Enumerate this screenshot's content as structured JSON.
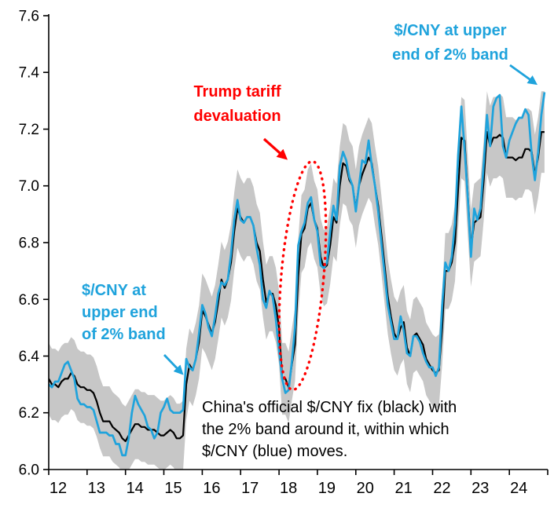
{
  "chart_data": {
    "type": "line",
    "title": "",
    "xlabel": "",
    "ylabel": "",
    "xlim": [
      12,
      25
    ],
    "ylim": [
      6.0,
      7.6
    ],
    "x_start_year": 12,
    "x_tick_labels": [
      "12",
      "13",
      "14",
      "15",
      "16",
      "17",
      "18",
      "19",
      "20",
      "21",
      "22",
      "23",
      "24"
    ],
    "y_ticks": [
      6.0,
      6.2,
      6.4,
      6.6,
      6.8,
      7.0,
      7.2,
      7.4,
      7.6
    ],
    "grid": false,
    "legend": "none",
    "band_pct": 2,
    "band_color": "#C7C7C7",
    "points_per_year": 12,
    "series": [
      {
        "name": "China's official $/CNY fix",
        "color": "#000000",
        "values": [
          6.32,
          6.3,
          6.3,
          6.29,
          6.31,
          6.32,
          6.32,
          6.34,
          6.33,
          6.3,
          6.29,
          6.29,
          6.28,
          6.28,
          6.27,
          6.24,
          6.2,
          6.17,
          6.17,
          6.17,
          6.15,
          6.14,
          6.13,
          6.11,
          6.1,
          6.12,
          6.14,
          6.16,
          6.16,
          6.15,
          6.15,
          6.14,
          6.14,
          6.14,
          6.13,
          6.12,
          6.12,
          6.13,
          6.14,
          6.13,
          6.11,
          6.11,
          6.12,
          6.3,
          6.37,
          6.35,
          6.39,
          6.45,
          6.56,
          6.54,
          6.51,
          6.48,
          6.52,
          6.59,
          6.67,
          6.64,
          6.67,
          6.73,
          6.84,
          6.92,
          6.89,
          6.87,
          6.89,
          6.89,
          6.86,
          6.8,
          6.77,
          6.67,
          6.59,
          6.62,
          6.62,
          6.58,
          6.5,
          6.32,
          6.32,
          6.29,
          6.37,
          6.44,
          6.68,
          6.83,
          6.85,
          6.92,
          6.94,
          6.88,
          6.85,
          6.75,
          6.71,
          6.72,
          6.79,
          6.89,
          6.87,
          7.0,
          7.08,
          7.07,
          7.02,
          7.0,
          6.92,
          7.0,
          7.04,
          7.07,
          7.1,
          7.08,
          7.0,
          6.93,
          6.83,
          6.72,
          6.61,
          6.54,
          6.48,
          6.46,
          6.5,
          6.52,
          6.43,
          6.4,
          6.47,
          6.48,
          6.46,
          6.44,
          6.39,
          6.37,
          6.35,
          6.34,
          6.35,
          6.5,
          6.7,
          6.7,
          6.73,
          6.8,
          6.99,
          7.17,
          7.16,
          6.97,
          6.78,
          6.87,
          6.88,
          6.89,
          7.02,
          7.19,
          7.14,
          7.17,
          7.17,
          7.18,
          7.17,
          7.1,
          7.1,
          7.1,
          7.09,
          7.1,
          7.1,
          7.13,
          7.13,
          7.12,
          7.04,
          7.1,
          7.19,
          7.19
        ]
      },
      {
        "name": "$/CNY spot",
        "color": "#1FA3DC",
        "values": [
          6.3,
          6.29,
          6.31,
          6.31,
          6.34,
          6.37,
          6.38,
          6.35,
          6.32,
          6.25,
          6.23,
          6.23,
          6.22,
          6.22,
          6.21,
          6.17,
          6.13,
          6.13,
          6.13,
          6.12,
          6.12,
          6.09,
          6.09,
          6.05,
          6.05,
          6.11,
          6.2,
          6.26,
          6.23,
          6.21,
          6.19,
          6.15,
          6.14,
          6.11,
          6.13,
          6.2,
          6.22,
          6.25,
          6.21,
          6.2,
          6.2,
          6.2,
          6.21,
          6.39,
          6.36,
          6.35,
          6.39,
          6.48,
          6.58,
          6.55,
          6.5,
          6.47,
          6.54,
          6.62,
          6.66,
          6.65,
          6.67,
          6.76,
          6.88,
          6.95,
          6.88,
          6.87,
          6.89,
          6.89,
          6.86,
          6.78,
          6.72,
          6.6,
          6.57,
          6.63,
          6.61,
          6.53,
          6.42,
          6.32,
          6.27,
          6.28,
          6.38,
          6.5,
          6.79,
          6.84,
          6.87,
          6.94,
          6.96,
          6.88,
          6.84,
          6.72,
          6.71,
          6.73,
          6.84,
          6.93,
          6.88,
          7.07,
          7.12,
          7.09,
          7.03,
          7.0,
          6.91,
          7.0,
          7.09,
          7.08,
          7.16,
          7.07,
          7.0,
          6.91,
          6.8,
          6.69,
          6.58,
          6.52,
          6.46,
          6.46,
          6.54,
          6.49,
          6.41,
          6.4,
          6.47,
          6.47,
          6.45,
          6.41,
          6.38,
          6.36,
          6.36,
          6.33,
          6.36,
          6.58,
          6.73,
          6.7,
          6.75,
          6.87,
          7.11,
          7.28,
          7.13,
          6.96,
          6.75,
          6.92,
          6.88,
          6.92,
          7.08,
          7.25,
          7.14,
          7.28,
          7.31,
          7.32,
          7.14,
          7.1,
          7.16,
          7.19,
          7.22,
          7.24,
          7.24,
          7.27,
          7.25,
          7.11,
          7.02,
          7.12,
          7.25,
          7.33
        ]
      }
    ]
  },
  "annotations": {
    "tariff": {
      "color": "#FF0000",
      "lines": [
        "Trump tariff",
        "devaluation"
      ]
    },
    "band_right": {
      "color": "#1FA3DC",
      "lines": [
        "$/CNY at upper",
        "end of 2% band"
      ]
    },
    "band_left": {
      "color": "#1FA3DC",
      "lines": [
        "$/CNY at",
        "upper end",
        "of 2% band"
      ]
    },
    "caption": {
      "color": "#000000",
      "lines": [
        "China's official $/CNY fix (black) with",
        "the 2% band around it, within which",
        "$/CNY (blue) moves."
      ]
    }
  }
}
